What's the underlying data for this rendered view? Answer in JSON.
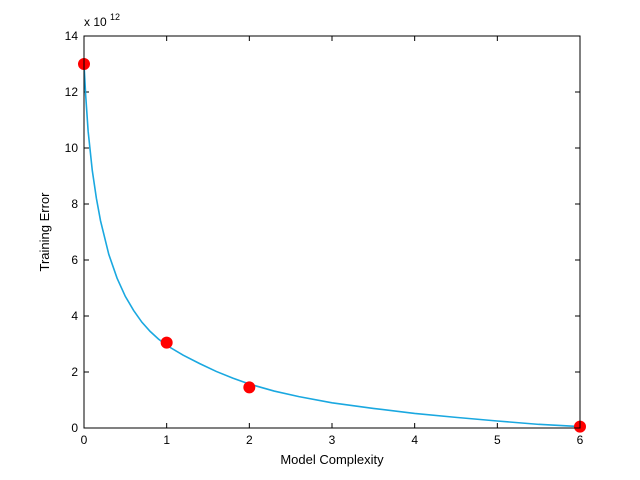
{
  "chart_data": {
    "type": "scatter",
    "title": "",
    "xlabel": "Model Complexity",
    "ylabel": "Training Error",
    "y_multiplier": "x 10",
    "y_exponent": "12",
    "xlim": [
      0,
      6
    ],
    "ylim": [
      0,
      14
    ],
    "x_ticks": [
      0,
      1,
      2,
      3,
      4,
      5,
      6
    ],
    "y_ticks": [
      0,
      2,
      4,
      6,
      8,
      10,
      12,
      14
    ],
    "grid": false,
    "legend": "none",
    "series": [
      {
        "kind": "points",
        "color": "#ff0000",
        "points": [
          {
            "x": 0,
            "y": 13.0
          },
          {
            "x": 1,
            "y": 3.05
          },
          {
            "x": 2,
            "y": 1.45
          },
          {
            "x": 6,
            "y": 0.05
          }
        ]
      },
      {
        "kind": "line",
        "color": "#1aa8e0",
        "points": [
          {
            "x": 0.0,
            "y": 13.0
          },
          {
            "x": 0.02,
            "y": 11.9
          },
          {
            "x": 0.05,
            "y": 10.6
          },
          {
            "x": 0.1,
            "y": 9.2
          },
          {
            "x": 0.15,
            "y": 8.2
          },
          {
            "x": 0.2,
            "y": 7.4
          },
          {
            "x": 0.3,
            "y": 6.2
          },
          {
            "x": 0.4,
            "y": 5.35
          },
          {
            "x": 0.5,
            "y": 4.7
          },
          {
            "x": 0.6,
            "y": 4.2
          },
          {
            "x": 0.7,
            "y": 3.78
          },
          {
            "x": 0.8,
            "y": 3.45
          },
          {
            "x": 0.9,
            "y": 3.18
          },
          {
            "x": 1.0,
            "y": 2.95
          },
          {
            "x": 1.2,
            "y": 2.6
          },
          {
            "x": 1.4,
            "y": 2.3
          },
          {
            "x": 1.6,
            "y": 2.02
          },
          {
            "x": 1.8,
            "y": 1.78
          },
          {
            "x": 2.0,
            "y": 1.57
          },
          {
            "x": 2.3,
            "y": 1.32
          },
          {
            "x": 2.6,
            "y": 1.12
          },
          {
            "x": 3.0,
            "y": 0.9
          },
          {
            "x": 3.5,
            "y": 0.7
          },
          {
            "x": 4.0,
            "y": 0.52
          },
          {
            "x": 4.5,
            "y": 0.38
          },
          {
            "x": 5.0,
            "y": 0.25
          },
          {
            "x": 5.5,
            "y": 0.13
          },
          {
            "x": 6.0,
            "y": 0.05
          }
        ]
      }
    ]
  }
}
